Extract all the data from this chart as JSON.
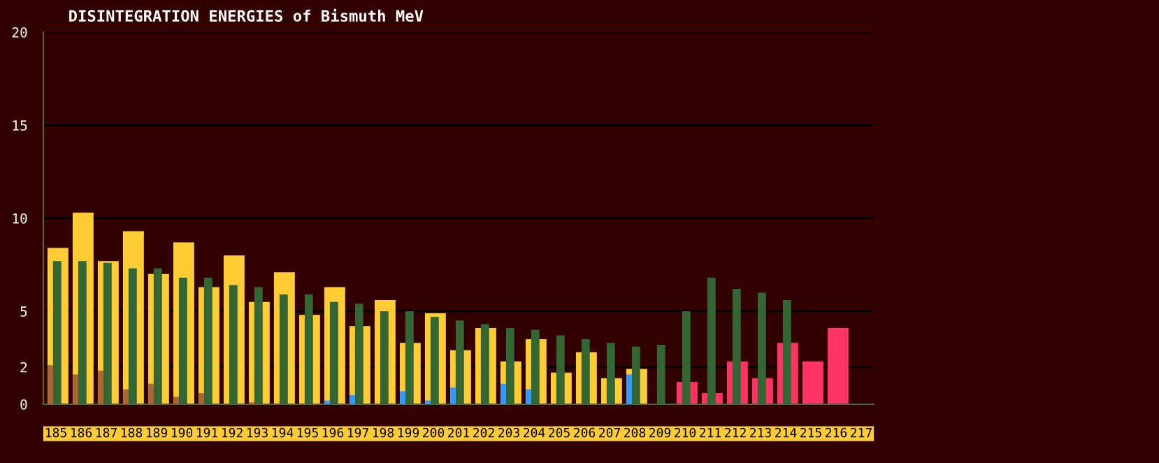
{
  "chart_data": {
    "type": "bar",
    "title": "DISINTEGRATION ENERGIES of Bismuth MeV",
    "categories": [
      "185",
      "186",
      "187",
      "188",
      "189",
      "190",
      "191",
      "192",
      "193",
      "194",
      "195",
      "196",
      "197",
      "198",
      "199",
      "200",
      "201",
      "202",
      "203",
      "204",
      "205",
      "206",
      "207",
      "208",
      "209",
      "210",
      "211",
      "212",
      "213",
      "214",
      "215",
      "216",
      "217"
    ],
    "series": [
      {
        "colors": [
          "#ffcc33",
          "#ffcc33",
          "#ffcc33",
          "#ffcc33",
          "#ffcc33",
          "#ffcc33",
          "#ffcc33",
          "#ffcc33",
          "#ffcc33",
          "#ffcc33",
          "#ffcc33",
          "#ffcc33",
          "#ffcc33",
          "#ffcc33",
          "#ffcc33",
          "#ffcc33",
          "#ffcc33",
          "#ffcc33",
          "#ffcc33",
          "#ffcc33",
          "#ffcc33",
          "#ffcc33",
          "#ffcc33",
          "#ffcc33",
          "#ffcc33",
          "#ff3366",
          "#ff3366",
          "#ff3366",
          "#ff3366",
          "#ff3366",
          "#ff3366",
          "#ff3366",
          "#ff3366"
        ],
        "values": [
          8.4,
          10.3,
          7.7,
          9.3,
          7.0,
          8.7,
          6.3,
          8.0,
          5.5,
          7.1,
          4.8,
          6.3,
          4.2,
          5.6,
          3.3,
          4.9,
          2.9,
          4.1,
          2.3,
          3.5,
          1.7,
          2.8,
          1.4,
          1.9,
          null,
          1.2,
          0.6,
          2.3,
          1.4,
          3.3,
          2.3,
          4.1,
          null
        ]
      },
      {
        "color": "#336633",
        "values": [
          7.7,
          7.7,
          7.6,
          7.3,
          7.3,
          6.8,
          6.8,
          6.4,
          6.3,
          5.9,
          5.9,
          5.5,
          5.4,
          5.0,
          5.0,
          4.7,
          4.5,
          4.3,
          4.1,
          4.0,
          3.7,
          3.5,
          3.3,
          3.1,
          3.2,
          5.0,
          6.8,
          6.2,
          6.0,
          5.6,
          null,
          null,
          null
        ]
      },
      {
        "colors": [
          "#aa6633",
          "#aa6633",
          "#aa6633",
          "#aa6633",
          "#aa6633",
          "#aa6633",
          "#aa6633",
          "#aa6633",
          "#aa6633",
          "#aa6633",
          "#aa6633",
          "#3399ff",
          "#3399ff",
          "#3399ff",
          "#3399ff",
          "#3399ff",
          "#3399ff",
          "#3399ff",
          "#3399ff",
          "#3399ff",
          "#3399ff",
          "#3399ff",
          "#3399ff",
          "#3399ff",
          "#3399ff",
          "#3399ff",
          "#3399ff",
          "#3399ff",
          "#3399ff",
          "#3399ff",
          "#3399ff",
          "#3399ff",
          "#3399ff"
        ],
        "values": [
          2.1,
          1.6,
          1.8,
          0.8,
          1.1,
          0.4,
          0.6,
          null,
          0.1,
          null,
          null,
          0.2,
          0.5,
          null,
          0.7,
          0.2,
          0.9,
          null,
          1.1,
          0.8,
          null,
          null,
          null,
          1.6,
          null,
          null,
          null,
          null,
          null,
          null,
          null,
          null,
          null
        ]
      }
    ],
    "ylim": [
      0,
      20
    ],
    "yticks": [
      0,
      2,
      5,
      10,
      15,
      20
    ],
    "grid": "y"
  }
}
